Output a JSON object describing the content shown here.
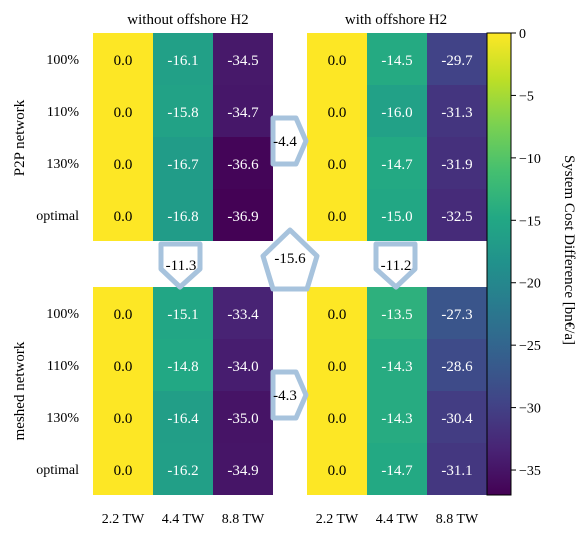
{
  "chart_data": {
    "type": "heatmap",
    "panels": [
      {
        "title": "without offshore H2",
        "group": "P2P network",
        "rows": [
          "100%",
          "110%",
          "130%",
          "optimal"
        ],
        "columns": [
          "2.2 TW",
          "4.4 TW",
          "8.8 TW"
        ],
        "values": [
          [
            0.0,
            -16.1,
            -34.5
          ],
          [
            0.0,
            -15.8,
            -34.7
          ],
          [
            0.0,
            -16.7,
            -36.6
          ],
          [
            0.0,
            -16.8,
            -36.9
          ]
        ]
      },
      {
        "title": "with offshore H2",
        "group": "P2P network",
        "rows": [
          "100%",
          "110%",
          "130%",
          "optimal"
        ],
        "columns": [
          "2.2 TW",
          "4.4 TW",
          "8.8 TW"
        ],
        "values": [
          [
            0.0,
            -14.5,
            -29.7
          ],
          [
            0.0,
            -16.0,
            -31.3
          ],
          [
            0.0,
            -14.7,
            -31.9
          ],
          [
            0.0,
            -15.0,
            -32.5
          ]
        ]
      },
      {
        "title": "",
        "group": "meshed network",
        "rows": [
          "100%",
          "110%",
          "130%",
          "optimal"
        ],
        "columns": [
          "2.2 TW",
          "4.4 TW",
          "8.8 TW"
        ],
        "values": [
          [
            0.0,
            -15.1,
            -33.4
          ],
          [
            0.0,
            -14.8,
            -34.0
          ],
          [
            0.0,
            -16.4,
            -35.0
          ],
          [
            0.0,
            -16.2,
            -34.9
          ]
        ]
      },
      {
        "title": "",
        "group": "meshed network",
        "rows": [
          "100%",
          "110%",
          "130%",
          "optimal"
        ],
        "columns": [
          "2.2 TW",
          "4.4 TW",
          "8.8 TW"
        ],
        "values": [
          [
            0.0,
            -13.5,
            -27.3
          ],
          [
            0.0,
            -14.3,
            -28.6
          ],
          [
            0.0,
            -14.3,
            -30.4
          ],
          [
            0.0,
            -14.7,
            -31.1
          ]
        ]
      }
    ],
    "arrows": [
      {
        "label": "-4.4",
        "from": "P2P network / without offshore H2",
        "to": "P2P network / with offshore H2"
      },
      {
        "label": "-4.3",
        "from": "meshed network / without offshore H2",
        "to": "meshed network / with offshore H2"
      },
      {
        "label": "-11.3",
        "from": "P2P network / without offshore H2",
        "to": "meshed network / without offshore H2"
      },
      {
        "label": "-11.2",
        "from": "P2P network / with offshore H2",
        "to": "meshed network / with offshore H2"
      },
      {
        "label": "-15.6",
        "from": "P2P network / without offshore H2",
        "to": "meshed network / with offshore H2"
      }
    ],
    "colorbar": {
      "label": "System Cost Difference [bn€/a]",
      "colormap": "viridis",
      "range": [
        -37,
        0
      ],
      "ticks": [
        0,
        -5,
        -10,
        -15,
        -20,
        -25,
        -30,
        -35
      ]
    },
    "formatting": {
      "decimals": 1,
      "grid": false
    }
  },
  "colors": {
    "arrow": "#a7c3dd"
  }
}
